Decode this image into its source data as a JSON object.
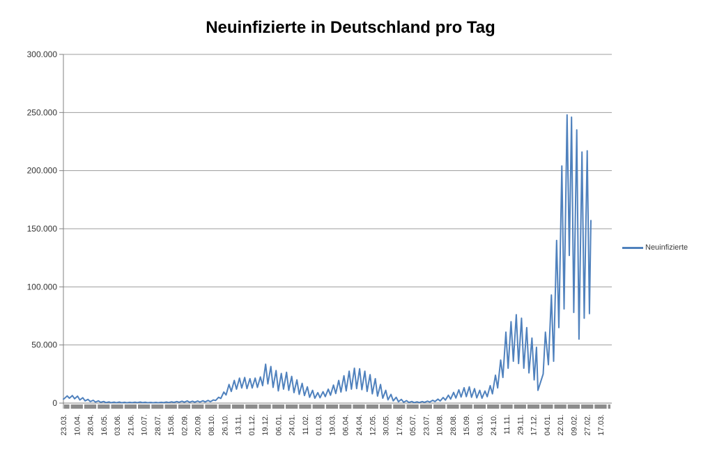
{
  "title": "Neuinfizierte in Deutschland pro Tag",
  "legend": {
    "label": "Neuinfizierte"
  },
  "colors": {
    "series_line": "#4F81BD",
    "gridline": "#9C9C9C",
    "axis_line": "#808080",
    "tick_band": "#8C8C8C",
    "axis_text": "#333333",
    "title_text": "#000000"
  },
  "chart_data": {
    "type": "line",
    "title": "Neuinfizierte in Deutschland pro Tag",
    "xlabel": "",
    "ylabel": "",
    "legend_position": "right",
    "legend_entries": [
      "Neuinfizierte"
    ],
    "grid": "horizontal",
    "ylim": [
      0,
      300000
    ],
    "y_ticks": [
      "0",
      "50.000",
      "100.000",
      "150.000",
      "200.000",
      "250.000",
      "300.000"
    ],
    "y_tick_values": [
      0,
      50000,
      100000,
      150000,
      200000,
      250000,
      300000
    ],
    "x_tick_labels": [
      "23.03.",
      "10.04.",
      "28.04.",
      "16.05.",
      "03.06.",
      "21.06.",
      "10.07.",
      "28.07.",
      "15.08.",
      "02.09.",
      "20.09.",
      "08.10.",
      "26.10.",
      "13.11.",
      "01.12.",
      "19.12.",
      "06.01.",
      "24.01.",
      "11.02.",
      "01.03.",
      "19.03.",
      "06.04.",
      "24.04.",
      "12.05.",
      "30.05.",
      "17.06.",
      "05.07.",
      "23.07.",
      "10.08.",
      "28.08.",
      "15.09.",
      "03.10.",
      "24.10.",
      "11.11.",
      "29.11.",
      "17.12.",
      "04.01.",
      "22.01.",
      "09.02.",
      "27.02.",
      "17.03."
    ],
    "x_tick_interval": 18,
    "x_count": 735,
    "series_name": "Neuinfizierte",
    "points": [
      [
        0,
        3500
      ],
      [
        1,
        3800
      ],
      [
        5,
        6200
      ],
      [
        8,
        4200
      ],
      [
        12,
        6500
      ],
      [
        15,
        3700
      ],
      [
        19,
        6000
      ],
      [
        22,
        2700
      ],
      [
        26,
        4600
      ],
      [
        29,
        1900
      ],
      [
        33,
        3200
      ],
      [
        36,
        1300
      ],
      [
        40,
        2400
      ],
      [
        43,
        900
      ],
      [
        47,
        1900
      ],
      [
        50,
        650
      ],
      [
        54,
        1400
      ],
      [
        57,
        450
      ],
      [
        61,
        1000
      ],
      [
        64,
        380
      ],
      [
        68,
        850
      ],
      [
        71,
        320
      ],
      [
        75,
        900
      ],
      [
        78,
        300
      ],
      [
        82,
        750
      ],
      [
        85,
        300
      ],
      [
        89,
        650
      ],
      [
        92,
        350
      ],
      [
        96,
        800
      ],
      [
        99,
        400
      ],
      [
        103,
        900
      ],
      [
        106,
        350
      ],
      [
        110,
        750
      ],
      [
        113,
        300
      ],
      [
        117,
        600
      ],
      [
        120,
        300
      ],
      [
        124,
        600
      ],
      [
        127,
        320
      ],
      [
        131,
        650
      ],
      [
        134,
        400
      ],
      [
        138,
        900
      ],
      [
        141,
        500
      ],
      [
        145,
        1100
      ],
      [
        148,
        600
      ],
      [
        152,
        1350
      ],
      [
        155,
        700
      ],
      [
        159,
        1650
      ],
      [
        162,
        800
      ],
      [
        166,
        1850
      ],
      [
        169,
        700
      ],
      [
        173,
        1600
      ],
      [
        176,
        800
      ],
      [
        180,
        1800
      ],
      [
        183,
        900
      ],
      [
        187,
        2000
      ],
      [
        190,
        1000
      ],
      [
        194,
        2300
      ],
      [
        197,
        1200
      ],
      [
        201,
        2700
      ],
      [
        204,
        2200
      ],
      [
        208,
        5000
      ],
      [
        211,
        4000
      ],
      [
        215,
        9500
      ],
      [
        218,
        7000
      ],
      [
        222,
        16000
      ],
      [
        225,
        10000
      ],
      [
        229,
        19500
      ],
      [
        232,
        12000
      ],
      [
        236,
        21500
      ],
      [
        239,
        13000
      ],
      [
        243,
        22000
      ],
      [
        246,
        12500
      ],
      [
        250,
        21000
      ],
      [
        253,
        13000
      ],
      [
        257,
        21500
      ],
      [
        260,
        13500
      ],
      [
        264,
        22500
      ],
      [
        267,
        15000
      ],
      [
        271,
        33500
      ],
      [
        274,
        16500
      ],
      [
        278,
        31500
      ],
      [
        281,
        13500
      ],
      [
        285,
        28000
      ],
      [
        288,
        10500
      ],
      [
        292,
        25500
      ],
      [
        295,
        12000
      ],
      [
        299,
        26500
      ],
      [
        302,
        11000
      ],
      [
        306,
        23000
      ],
      [
        309,
        9000
      ],
      [
        313,
        20000
      ],
      [
        316,
        7500
      ],
      [
        320,
        17000
      ],
      [
        323,
        6500
      ],
      [
        327,
        14000
      ],
      [
        330,
        5000
      ],
      [
        334,
        11000
      ],
      [
        337,
        4200
      ],
      [
        341,
        9000
      ],
      [
        344,
        4600
      ],
      [
        348,
        9800
      ],
      [
        351,
        5600
      ],
      [
        355,
        12000
      ],
      [
        358,
        6800
      ],
      [
        362,
        15500
      ],
      [
        365,
        8200
      ],
      [
        369,
        19500
      ],
      [
        372,
        9500
      ],
      [
        376,
        23500
      ],
      [
        379,
        10500
      ],
      [
        383,
        27500
      ],
      [
        386,
        12000
      ],
      [
        390,
        30000
      ],
      [
        393,
        12500
      ],
      [
        397,
        29500
      ],
      [
        400,
        11500
      ],
      [
        404,
        27500
      ],
      [
        407,
        10000
      ],
      [
        411,
        24500
      ],
      [
        414,
        8000
      ],
      [
        418,
        21000
      ],
      [
        421,
        6000
      ],
      [
        425,
        16000
      ],
      [
        428,
        4200
      ],
      [
        432,
        11000
      ],
      [
        435,
        2800
      ],
      [
        439,
        7500
      ],
      [
        442,
        1900
      ],
      [
        446,
        5000
      ],
      [
        449,
        1200
      ],
      [
        453,
        3200
      ],
      [
        456,
        800
      ],
      [
        460,
        2100
      ],
      [
        463,
        550
      ],
      [
        467,
        1400
      ],
      [
        470,
        450
      ],
      [
        474,
        1100
      ],
      [
        477,
        500
      ],
      [
        481,
        1300
      ],
      [
        484,
        650
      ],
      [
        488,
        1700
      ],
      [
        491,
        900
      ],
      [
        495,
        2400
      ],
      [
        498,
        1300
      ],
      [
        502,
        3400
      ],
      [
        505,
        1800
      ],
      [
        509,
        4800
      ],
      [
        512,
        2600
      ],
      [
        516,
        6800
      ],
      [
        519,
        3500
      ],
      [
        523,
        9200
      ],
      [
        526,
        4400
      ],
      [
        530,
        11400
      ],
      [
        533,
        5200
      ],
      [
        537,
        13200
      ],
      [
        540,
        5600
      ],
      [
        544,
        14000
      ],
      [
        547,
        5000
      ],
      [
        551,
        12400
      ],
      [
        554,
        4500
      ],
      [
        558,
        11000
      ],
      [
        561,
        4200
      ],
      [
        565,
        10400
      ],
      [
        568,
        5500
      ],
      [
        572,
        15000
      ],
      [
        575,
        8000
      ],
      [
        579,
        24000
      ],
      [
        582,
        13000
      ],
      [
        586,
        37000
      ],
      [
        589,
        22000
      ],
      [
        593,
        61000
      ],
      [
        596,
        30000
      ],
      [
        600,
        70000
      ],
      [
        603,
        36000
      ],
      [
        607,
        76000
      ],
      [
        610,
        34000
      ],
      [
        614,
        73000
      ],
      [
        617,
        30000
      ],
      [
        621,
        65000
      ],
      [
        624,
        26000
      ],
      [
        628,
        56000
      ],
      [
        631,
        20000
      ],
      [
        634,
        48000
      ],
      [
        636,
        11000
      ],
      [
        643,
        25000
      ],
      [
        646,
        61000
      ],
      [
        650,
        33000
      ],
      [
        654,
        93000
      ],
      [
        657,
        36000
      ],
      [
        661,
        140000
      ],
      [
        664,
        65000
      ],
      [
        668,
        204000
      ],
      [
        671,
        81000
      ],
      [
        675,
        248000
      ],
      [
        678,
        127000
      ],
      [
        681,
        246000
      ],
      [
        684,
        78000
      ],
      [
        688,
        235000
      ],
      [
        691,
        55000
      ],
      [
        695,
        216000
      ],
      [
        698,
        73000
      ],
      [
        702,
        217000
      ],
      [
        705,
        77000
      ],
      [
        707,
        157000
      ]
    ]
  }
}
